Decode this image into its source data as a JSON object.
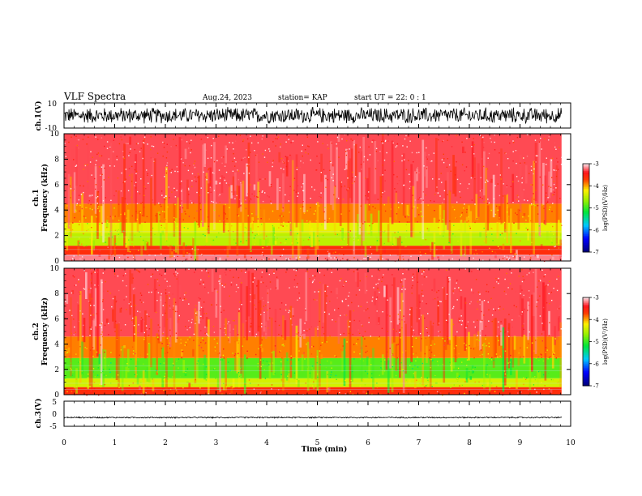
{
  "header": {
    "title": "VLF Spectra",
    "date": "Aug.24, 2023",
    "station": "station= KAP",
    "start_time": "start  UT =   22: 0  : 1"
  },
  "chart_data": {
    "type": "heatmap",
    "x_axis": {
      "label": "Time  (min)",
      "range": [
        0,
        10
      ],
      "ticks": [
        "0",
        "1",
        "2",
        "3",
        "4",
        "5",
        "6",
        "7",
        "8",
        "9",
        "10"
      ],
      "data_end_min": 9.82
    },
    "panels": [
      {
        "id": "ch1-waveform",
        "type": "line",
        "ylabel": "ch.1(V)",
        "ylim": [
          -10,
          10
        ],
        "ytick_labels": [
          "-10",
          "10"
        ],
        "description_amplitude_V": 7
      },
      {
        "id": "ch1-spectrogram",
        "type": "heatmap",
        "ylabel_lines": [
          "ch.1",
          "Frequency  (kHz)"
        ],
        "ylim_kHz": [
          0,
          10
        ],
        "ytick_labels": [
          "0",
          "2",
          "4",
          "6",
          "8",
          "10"
        ],
        "bands_kHz": [
          {
            "from": 0.0,
            "to": 0.5,
            "level": -3.2
          },
          {
            "from": 0.5,
            "to": 1.2,
            "level": -3.6
          },
          {
            "from": 1.2,
            "to": 2.2,
            "level": -4.5
          },
          {
            "from": 2.2,
            "to": 3.0,
            "level": -4.3
          },
          {
            "from": 3.0,
            "to": 4.5,
            "level": -3.9
          },
          {
            "from": 4.5,
            "to": 10.0,
            "level": -3.3
          }
        ],
        "colorbar": {
          "label": "log(PSD)(V²/Hz)",
          "range": [
            -7,
            -3
          ],
          "tick_labels": [
            "-3",
            "-4",
            "-5",
            "-6",
            "-7"
          ]
        }
      },
      {
        "id": "ch2-spectrogram",
        "type": "heatmap",
        "ylabel_lines": [
          "ch.2",
          "Frequency  (kHz)"
        ],
        "ylim_kHz": [
          0,
          10
        ],
        "ytick_labels": [
          "0",
          "2",
          "4",
          "6",
          "8",
          "10"
        ],
        "bands_kHz": [
          {
            "from": 0.0,
            "to": 0.6,
            "level": -3.6
          },
          {
            "from": 0.6,
            "to": 1.3,
            "level": -4.4
          },
          {
            "from": 1.3,
            "to": 2.9,
            "level": -4.9
          },
          {
            "from": 2.9,
            "to": 4.6,
            "level": -3.9
          },
          {
            "from": 4.6,
            "to": 10.0,
            "level": -3.3
          }
        ],
        "colorbar": {
          "label": "log(PSD)(V²/Hz)",
          "range": [
            -7,
            -3
          ],
          "tick_labels": [
            "-3",
            "-4",
            "-5",
            "-6",
            "-7"
          ]
        }
      },
      {
        "id": "ch3-waveform",
        "type": "line",
        "ylabel": "ch.3(V)",
        "ylim": [
          -5,
          5
        ],
        "ytick_labels": [
          "-5",
          "0",
          "5"
        ],
        "description_level_V": -1.5,
        "description_amplitude_V": 0.3
      }
    ]
  }
}
